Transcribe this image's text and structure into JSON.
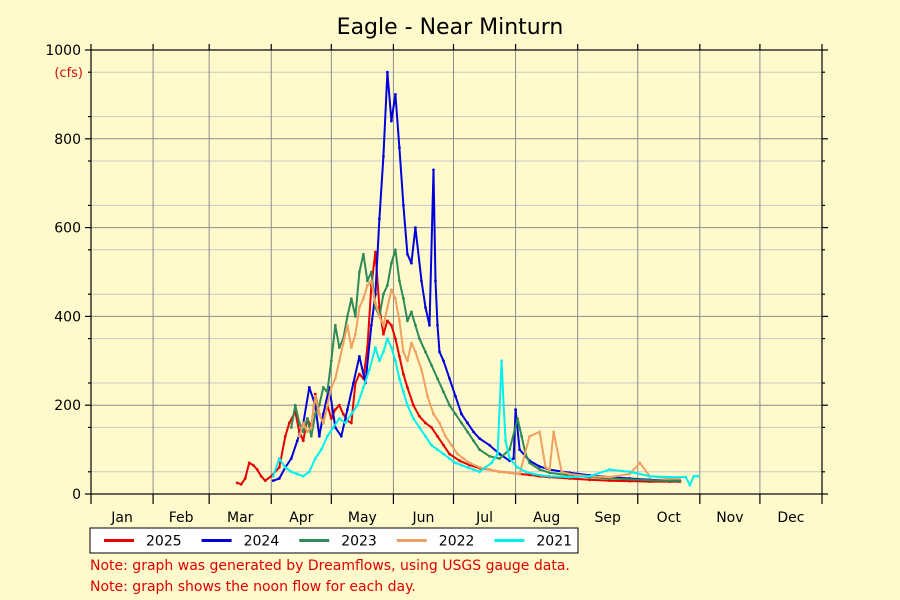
{
  "chart_data": {
    "type": "line",
    "title": "Eagle - Near Minturn",
    "ylabel": "(cfs)",
    "xlabel": "",
    "ylim": [
      0,
      1000
    ],
    "yticks": [
      0,
      200,
      400,
      600,
      800,
      1000
    ],
    "x_unit": "day-of-year",
    "xlim": [
      1,
      366
    ],
    "months": [
      "Jan",
      "Feb",
      "Mar",
      "Apr",
      "May",
      "Jun",
      "Jul",
      "Aug",
      "Sep",
      "Oct",
      "Nov",
      "Dec"
    ],
    "grid": true,
    "legend": "bottom",
    "series": [
      {
        "name": "2025",
        "color": "#e60000",
        "x": [
          74,
          76,
          78,
          80,
          82,
          84,
          86,
          88,
          91,
          95,
          98,
          100,
          103,
          105,
          107,
          109,
          111,
          113,
          115,
          117,
          119,
          121,
          123,
          125,
          127,
          129,
          131,
          133,
          135,
          137,
          139,
          141,
          143,
          145,
          147,
          149,
          151,
          153,
          155,
          157,
          159,
          162,
          165,
          168,
          171,
          174,
          177,
          180,
          185,
          190,
          195,
          200,
          205,
          210,
          215,
          220,
          225,
          230,
          240,
          250,
          260,
          270,
          280,
          290,
          295
        ],
        "values": [
          25,
          22,
          35,
          70,
          65,
          55,
          40,
          30,
          40,
          60,
          130,
          160,
          185,
          140,
          120,
          170,
          150,
          225,
          180,
          160,
          200,
          170,
          190,
          200,
          180,
          165,
          160,
          250,
          270,
          260,
          330,
          470,
          545,
          420,
          360,
          390,
          380,
          350,
          310,
          270,
          240,
          200,
          175,
          160,
          150,
          130,
          110,
          90,
          75,
          65,
          58,
          55,
          50,
          48,
          45,
          43,
          40,
          38,
          35,
          32,
          30,
          29,
          28,
          28,
          28
        ]
      },
      {
        "name": "2024",
        "color": "#0000dd",
        "x": [
          92,
          95,
          98,
          101,
          104,
          107,
          110,
          113,
          115,
          117,
          120,
          123,
          126,
          129,
          132,
          135,
          138,
          141,
          143,
          145,
          147,
          149,
          151,
          153,
          155,
          157,
          159,
          161,
          163,
          166,
          168,
          170,
          172,
          173,
          174,
          175,
          177,
          180,
          183,
          186,
          189,
          192,
          195,
          200,
          205,
          210,
          212,
          213,
          215,
          220,
          225,
          230,
          240,
          250,
          260,
          270,
          280,
          290,
          295
        ],
        "values": [
          30,
          35,
          60,
          80,
          120,
          160,
          240,
          200,
          130,
          180,
          240,
          150,
          130,
          190,
          250,
          310,
          250,
          380,
          450,
          620,
          760,
          950,
          840,
          900,
          780,
          650,
          540,
          520,
          600,
          480,
          420,
          380,
          730,
          480,
          380,
          320,
          300,
          260,
          220,
          180,
          160,
          140,
          125,
          110,
          90,
          75,
          80,
          190,
          100,
          75,
          62,
          55,
          48,
          42,
          38,
          35,
          32,
          30,
          30
        ]
      },
      {
        "name": "2023",
        "color": "#2e8b57",
        "x": [
          101,
          103,
          105,
          107,
          109,
          111,
          113,
          115,
          117,
          119,
          121,
          123,
          125,
          127,
          129,
          131,
          133,
          135,
          137,
          139,
          141,
          143,
          145,
          147,
          149,
          151,
          153,
          155,
          157,
          159,
          161,
          163,
          165,
          168,
          171,
          174,
          177,
          180,
          183,
          186,
          189,
          192,
          195,
          200,
          205,
          210,
          214,
          216,
          218,
          220,
          225,
          230,
          240,
          250,
          260,
          270,
          280,
          290,
          295
        ],
        "values": [
          150,
          200,
          160,
          140,
          170,
          130,
          180,
          200,
          240,
          230,
          300,
          380,
          330,
          350,
          400,
          440,
          400,
          500,
          540,
          480,
          500,
          420,
          400,
          450,
          470,
          520,
          550,
          480,
          440,
          390,
          410,
          380,
          350,
          320,
          290,
          260,
          230,
          200,
          180,
          160,
          140,
          120,
          100,
          85,
          80,
          100,
          170,
          130,
          90,
          70,
          55,
          48,
          42,
          38,
          35,
          33,
          31,
          30,
          30
        ]
      },
      {
        "name": "2022",
        "color": "#f0a060",
        "x": [
          105,
          107,
          109,
          111,
          113,
          115,
          117,
          119,
          121,
          123,
          125,
          127,
          129,
          131,
          133,
          135,
          137,
          139,
          141,
          143,
          145,
          147,
          149,
          151,
          153,
          155,
          157,
          159,
          161,
          163,
          166,
          169,
          172,
          175,
          178,
          181,
          184,
          187,
          190,
          195,
          200,
          205,
          210,
          215,
          220,
          225,
          228,
          230,
          232,
          236,
          240,
          250,
          260,
          270,
          275,
          280,
          290,
          295
        ],
        "values": [
          130,
          160,
          140,
          150,
          220,
          180,
          160,
          200,
          240,
          260,
          300,
          340,
          380,
          330,
          360,
          420,
          440,
          470,
          480,
          430,
          400,
          380,
          420,
          460,
          440,
          390,
          320,
          300,
          340,
          320,
          280,
          220,
          180,
          160,
          130,
          110,
          90,
          80,
          70,
          60,
          55,
          50,
          48,
          45,
          130,
          140,
          60,
          55,
          140,
          50,
          45,
          40,
          38,
          45,
          70,
          40,
          35,
          35
        ]
      },
      {
        "name": "2021",
        "color": "#00f0f0",
        "x": [
          92,
          95,
          98,
          101,
          104,
          107,
          110,
          113,
          116,
          119,
          122,
          125,
          128,
          131,
          134,
          137,
          140,
          143,
          145,
          147,
          149,
          151,
          153,
          155,
          157,
          159,
          162,
          165,
          168,
          171,
          174,
          177,
          180,
          183,
          186,
          189,
          192,
          195,
          198,
          201,
          204,
          206,
          207,
          208,
          210,
          214,
          218,
          222,
          226,
          230,
          240,
          250,
          260,
          270,
          280,
          290,
          298,
          300,
          302,
          304
        ],
        "values": [
          40,
          80,
          60,
          50,
          45,
          40,
          50,
          80,
          100,
          130,
          150,
          170,
          160,
          180,
          200,
          240,
          280,
          330,
          300,
          320,
          350,
          330,
          300,
          260,
          230,
          200,
          170,
          150,
          130,
          110,
          100,
          90,
          80,
          70,
          65,
          60,
          55,
          50,
          60,
          70,
          90,
          300,
          200,
          120,
          80,
          60,
          50,
          45,
          42,
          40,
          38,
          40,
          55,
          50,
          40,
          38,
          38,
          20,
          40,
          40
        ]
      }
    ],
    "notes": [
      "Note: graph was generated by Dreamflows, using USGS gauge data.",
      "Note: graph shows the noon flow for each day."
    ]
  }
}
